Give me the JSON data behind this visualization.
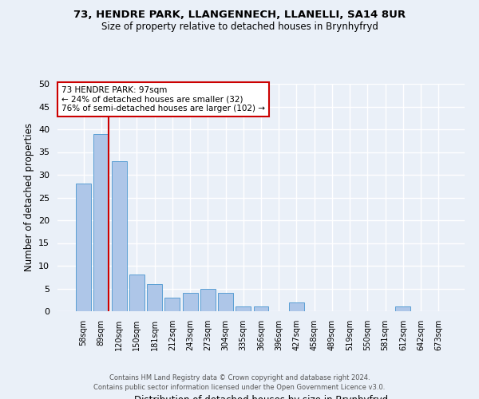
{
  "title": "73, HENDRE PARK, LLANGENNECH, LLANELLI, SA14 8UR",
  "subtitle": "Size of property relative to detached houses in Brynhyfryd",
  "xlabel": "Distribution of detached houses by size in Brynhyfryd",
  "ylabel": "Number of detached properties",
  "footer1": "Contains HM Land Registry data © Crown copyright and database right 2024.",
  "footer2": "Contains public sector information licensed under the Open Government Licence v3.0.",
  "categories": [
    "58sqm",
    "89sqm",
    "120sqm",
    "150sqm",
    "181sqm",
    "212sqm",
    "243sqm",
    "273sqm",
    "304sqm",
    "335sqm",
    "366sqm",
    "396sqm",
    "427sqm",
    "458sqm",
    "489sqm",
    "519sqm",
    "550sqm",
    "581sqm",
    "612sqm",
    "642sqm",
    "673sqm"
  ],
  "values": [
    28,
    39,
    33,
    8,
    6,
    3,
    4,
    5,
    4,
    1,
    1,
    0,
    2,
    0,
    0,
    0,
    0,
    0,
    1,
    0,
    0
  ],
  "bar_color": "#aec6e8",
  "bar_edge_color": "#5a9fd4",
  "background_color": "#eaf0f8",
  "grid_color": "#ffffff",
  "annotation_text": "73 HENDRE PARK: 97sqm\n← 24% of detached houses are smaller (32)\n76% of semi-detached houses are larger (102) →",
  "annotation_box_color": "#ffffff",
  "annotation_border_color": "#cc0000",
  "redline_color": "#cc0000",
  "ylim": [
    0,
    50
  ],
  "yticks": [
    0,
    5,
    10,
    15,
    20,
    25,
    30,
    35,
    40,
    45,
    50
  ]
}
